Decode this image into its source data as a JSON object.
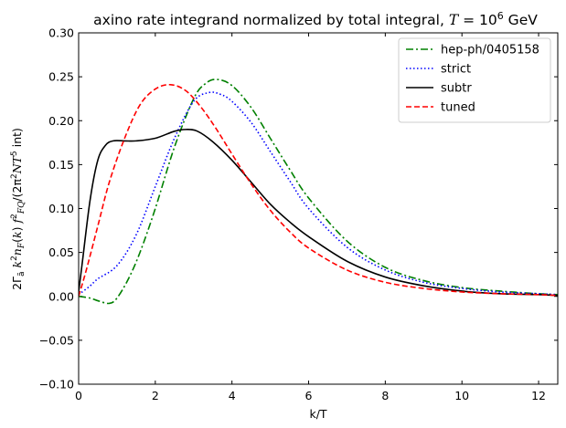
{
  "chart_data": {
    "type": "line",
    "title": "axino rate integrand normalized by total integral, ",
    "title_math": "T",
    "title_eq": " = 10",
    "title_exp": "6",
    "title_unit": " GeV",
    "xlabel": "k/T",
    "ylabel": "2Γã k²nF(k) f²FQ/(2π²NT⁵ int)",
    "xlim": [
      0,
      12.5
    ],
    "ylim": [
      -0.1,
      0.3
    ],
    "xticks": [
      0,
      2,
      4,
      6,
      8,
      10,
      12
    ],
    "xtick_labels": [
      "0",
      "2",
      "4",
      "6",
      "8",
      "10",
      "12"
    ],
    "yticks": [
      -0.1,
      -0.05,
      0.0,
      0.05,
      0.1,
      0.15,
      0.2,
      0.25,
      0.3
    ],
    "ytick_labels": [
      "−0.10",
      "−0.05",
      "0.00",
      "0.05",
      "0.10",
      "0.15",
      "0.20",
      "0.25",
      "0.30"
    ],
    "legend_position": "top-right",
    "series": [
      {
        "name": "hep-ph/0405158",
        "color": "#008000",
        "dash": "dashdot",
        "x": [
          0,
          0.3,
          0.5,
          0.8,
          1.0,
          1.3,
          1.6,
          2.0,
          2.5,
          3.0,
          3.3,
          3.6,
          4.0,
          4.5,
          5.0,
          5.5,
          6.0,
          7.0,
          8.0,
          9.0,
          10.0,
          11.0,
          12.0,
          12.5
        ],
        "y": [
          0.0,
          -0.002,
          -0.005,
          -0.008,
          -0.002,
          0.02,
          0.05,
          0.1,
          0.17,
          0.225,
          0.242,
          0.247,
          0.24,
          0.215,
          0.18,
          0.145,
          0.112,
          0.063,
          0.033,
          0.018,
          0.01,
          0.006,
          0.003,
          0.002
        ]
      },
      {
        "name": "strict",
        "color": "#0000ff",
        "dash": "dotted",
        "x": [
          0,
          0.3,
          0.5,
          1.0,
          1.5,
          2.0,
          2.5,
          3.0,
          3.4,
          3.7,
          4.0,
          4.5,
          5.0,
          5.5,
          6.0,
          7.0,
          8.0,
          9.0,
          10.0,
          11.0,
          12.0,
          12.5
        ],
        "y": [
          0.002,
          0.012,
          0.02,
          0.035,
          0.07,
          0.125,
          0.18,
          0.222,
          0.232,
          0.23,
          0.222,
          0.198,
          0.165,
          0.132,
          0.1,
          0.056,
          0.03,
          0.016,
          0.009,
          0.005,
          0.003,
          0.002
        ]
      },
      {
        "name": "subtr",
        "color": "#000000",
        "dash": "solid",
        "x": [
          0,
          0.1,
          0.3,
          0.5,
          0.7,
          0.9,
          1.2,
          1.5,
          2.0,
          2.5,
          2.8,
          3.1,
          3.5,
          4.0,
          4.5,
          5.0,
          5.5,
          6.0,
          7.0,
          8.0,
          9.0,
          10.0,
          11.0,
          12.0,
          12.5
        ],
        "y": [
          0.005,
          0.04,
          0.11,
          0.155,
          0.172,
          0.177,
          0.177,
          0.177,
          0.18,
          0.188,
          0.19,
          0.188,
          0.176,
          0.155,
          0.13,
          0.105,
          0.085,
          0.068,
          0.04,
          0.022,
          0.012,
          0.006,
          0.003,
          0.002,
          0.001
        ]
      },
      {
        "name": "tuned",
        "color": "#ff0000",
        "dash": "dashed",
        "x": [
          0,
          0.2,
          0.5,
          0.8,
          1.2,
          1.6,
          2.0,
          2.4,
          2.8,
          3.2,
          3.6,
          4.0,
          4.5,
          5.0,
          5.5,
          6.0,
          7.0,
          8.0,
          9.0,
          10.0,
          11.0,
          12.0,
          12.5
        ],
        "y": [
          0.0,
          0.03,
          0.08,
          0.13,
          0.18,
          0.218,
          0.236,
          0.241,
          0.234,
          0.215,
          0.19,
          0.162,
          0.128,
          0.098,
          0.074,
          0.055,
          0.03,
          0.016,
          0.009,
          0.005,
          0.003,
          0.002,
          0.001
        ]
      }
    ]
  }
}
